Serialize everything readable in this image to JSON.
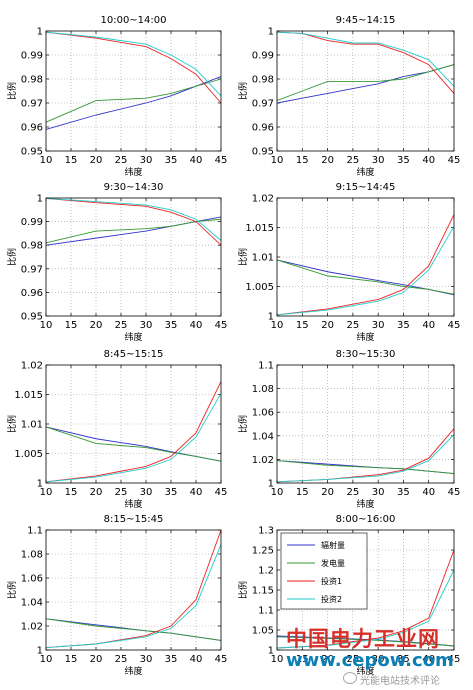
{
  "chart_data": [
    {
      "type": "line",
      "title": "10:00~14:00",
      "xlabel": "纬度",
      "ylabel": "比例",
      "x": [
        10,
        20,
        30,
        35,
        40,
        45
      ],
      "xlim": [
        10,
        45
      ],
      "ylim": [
        0.95,
        1.0
      ],
      "yticks": [
        "0.95",
        "0.96",
        "0.97",
        "0.98",
        "0.99",
        "1"
      ],
      "xticks": [
        "10",
        "15",
        "20",
        "25",
        "30",
        "35",
        "40",
        "45"
      ],
      "grid": true,
      "series": [
        {
          "name": "辐射量",
          "values": [
            0.959,
            0.965,
            0.97,
            0.973,
            0.977,
            0.981
          ]
        },
        {
          "name": "发电量",
          "values": [
            0.962,
            0.971,
            0.972,
            0.974,
            0.977,
            0.98
          ]
        },
        {
          "name": "投资1",
          "values": [
            0.9995,
            0.997,
            0.9935,
            0.9885,
            0.982,
            0.97
          ]
        },
        {
          "name": "投资2",
          "values": [
            0.9995,
            0.9975,
            0.9945,
            0.99,
            0.984,
            0.973
          ]
        }
      ]
    },
    {
      "type": "line",
      "title": "9:45~14:15",
      "xlabel": "纬度",
      "ylabel": "比例",
      "x": [
        10,
        15,
        20,
        25,
        30,
        35,
        40,
        45
      ],
      "xlim": [
        10,
        45
      ],
      "ylim": [
        0.95,
        1.0
      ],
      "yticks": [
        "0.95",
        "0.96",
        "0.97",
        "0.98",
        "0.99",
        "1"
      ],
      "xticks": [
        "10",
        "15",
        "20",
        "25",
        "30",
        "35",
        "40",
        "45"
      ],
      "grid": true,
      "series": [
        {
          "name": "辐射量",
          "values": [
            0.97,
            0.972,
            0.974,
            0.976,
            0.978,
            0.981,
            0.983,
            0.986
          ]
        },
        {
          "name": "发电量",
          "values": [
            0.971,
            0.975,
            0.979,
            0.979,
            0.979,
            0.98,
            0.983,
            0.986
          ]
        },
        {
          "name": "投资1",
          "values": [
            0.9995,
            0.999,
            0.996,
            0.9945,
            0.9945,
            0.991,
            0.986,
            0.974
          ]
        },
        {
          "name": "投资2",
          "values": [
            0.9995,
            0.999,
            0.997,
            0.995,
            0.995,
            0.992,
            0.988,
            0.977
          ]
        }
      ]
    },
    {
      "type": "line",
      "title": "9:30~14:30",
      "xlabel": "纬度",
      "ylabel": "比例",
      "x": [
        10,
        20,
        30,
        35,
        40,
        45
      ],
      "xlim": [
        10,
        45
      ],
      "ylim": [
        0.95,
        1.0
      ],
      "yticks": [
        "0.95",
        "0.96",
        "0.97",
        "0.98",
        "0.99",
        "1"
      ],
      "xticks": [
        "10",
        "15",
        "20",
        "25",
        "30",
        "35",
        "40",
        "45"
      ],
      "grid": true,
      "series": [
        {
          "name": "辐射量",
          "values": [
            0.98,
            0.983,
            0.986,
            0.988,
            0.99,
            0.992
          ]
        },
        {
          "name": "发电量",
          "values": [
            0.981,
            0.986,
            0.987,
            0.988,
            0.99,
            0.991
          ]
        },
        {
          "name": "投资1",
          "values": [
            0.9998,
            0.998,
            0.9965,
            0.994,
            0.99,
            0.98
          ]
        },
        {
          "name": "投资2",
          "values": [
            0.9998,
            0.9985,
            0.997,
            0.995,
            0.991,
            0.982
          ]
        }
      ]
    },
    {
      "type": "line",
      "title": "9:15~14:45",
      "xlabel": "纬度",
      "ylabel": "比例",
      "x": [
        10,
        20,
        30,
        35,
        40,
        45
      ],
      "xlim": [
        10,
        45
      ],
      "ylim": [
        1.0,
        1.02
      ],
      "yticks": [
        "1",
        "1.005",
        "1.01",
        "1.015",
        "1.02"
      ],
      "xticks": [
        "10",
        "15",
        "20",
        "25",
        "30",
        "35",
        "40",
        "45"
      ],
      "grid": true,
      "series": [
        {
          "name": "辐射量",
          "values": [
            1.0095,
            1.0075,
            1.006,
            1.0053,
            1.0045,
            1.0036
          ]
        },
        {
          "name": "发电量",
          "values": [
            1.0095,
            1.0068,
            1.0058,
            1.005,
            1.0045,
            1.0037
          ]
        },
        {
          "name": "投资1",
          "values": [
            1.0002,
            1.0012,
            1.0028,
            1.0045,
            1.0085,
            1.0172
          ]
        },
        {
          "name": "投资2",
          "values": [
            1.0002,
            1.001,
            1.0025,
            1.004,
            1.0078,
            1.0152
          ]
        }
      ]
    },
    {
      "type": "line",
      "title": "8:45~15:15",
      "xlabel": "纬度",
      "ylabel": "比例",
      "x": [
        10,
        20,
        30,
        35,
        40,
        45
      ],
      "xlim": [
        10,
        45
      ],
      "ylim": [
        1.0,
        1.02
      ],
      "yticks": [
        "1",
        "1.005",
        "1.01",
        "1.015",
        "1.02"
      ],
      "xticks": [
        "10",
        "15",
        "20",
        "25",
        "30",
        "35",
        "40",
        "45"
      ],
      "grid": true,
      "series": [
        {
          "name": "辐射量",
          "values": [
            1.0095,
            1.0075,
            1.0062,
            1.0053,
            1.0045,
            1.0037
          ]
        },
        {
          "name": "发电量",
          "values": [
            1.0095,
            1.0067,
            1.006,
            1.0052,
            1.0045,
            1.0037
          ]
        },
        {
          "name": "投资1",
          "values": [
            1.0002,
            1.0012,
            1.0028,
            1.0045,
            1.0085,
            1.0172
          ]
        },
        {
          "name": "投资2",
          "values": [
            1.0002,
            1.001,
            1.0025,
            1.004,
            1.0078,
            1.0152
          ]
        }
      ]
    },
    {
      "type": "line",
      "title": "8:30~15:30",
      "xlabel": "纬度",
      "ylabel": "比例",
      "x": [
        10,
        20,
        30,
        35,
        40,
        45
      ],
      "xlim": [
        10,
        45
      ],
      "ylim": [
        1.0,
        1.1
      ],
      "yticks": [
        "1",
        "1.02",
        "1.04",
        "1.06",
        "1.08",
        "1.1"
      ],
      "xticks": [
        "10",
        "15",
        "20",
        "25",
        "30",
        "35",
        "40",
        "45"
      ],
      "grid": true,
      "series": [
        {
          "name": "辐射量",
          "values": [
            1.019,
            1.016,
            1.013,
            1.012,
            1.01,
            1.008
          ]
        },
        {
          "name": "发电量",
          "values": [
            1.019,
            1.015,
            1.013,
            1.012,
            1.01,
            1.008
          ]
        },
        {
          "name": "投资1",
          "values": [
            1.001,
            1.003,
            1.007,
            1.011,
            1.021,
            1.046
          ]
        },
        {
          "name": "投资2",
          "values": [
            1.001,
            1.003,
            1.006,
            1.01,
            1.019,
            1.041
          ]
        }
      ]
    },
    {
      "type": "line",
      "title": "8:15~15:45",
      "xlabel": "纬度",
      "ylabel": "比例",
      "x": [
        10,
        20,
        30,
        35,
        40,
        45
      ],
      "xlim": [
        10,
        45
      ],
      "ylim": [
        1.0,
        1.1
      ],
      "yticks": [
        "1",
        "1.02",
        "1.04",
        "1.06",
        "1.08",
        "1.1"
      ],
      "xticks": [
        "10",
        "15",
        "20",
        "25",
        "30",
        "35",
        "40",
        "45"
      ],
      "grid": true,
      "series": [
        {
          "name": "辐射量",
          "values": [
            1.026,
            1.021,
            1.016,
            1.014,
            1.011,
            1.008
          ]
        },
        {
          "name": "发电量",
          "values": [
            1.026,
            1.02,
            1.016,
            1.014,
            1.011,
            1.008
          ]
        },
        {
          "name": "投资1",
          "values": [
            1.002,
            1.005,
            1.012,
            1.02,
            1.042,
            1.1
          ]
        },
        {
          "name": "投资2",
          "values": [
            1.002,
            1.005,
            1.011,
            1.018,
            1.037,
            1.088
          ]
        }
      ]
    },
    {
      "type": "line",
      "title": "8:00~16:00",
      "xlabel": "纬度",
      "ylabel": "比例",
      "x": [
        10,
        20,
        30,
        35,
        40,
        45
      ],
      "xlim": [
        10,
        45
      ],
      "ylim": [
        1.0,
        1.3
      ],
      "yticks": [
        "1",
        "1.05",
        "1.1",
        "1.15",
        "1.2",
        "1.25",
        "1.3"
      ],
      "xticks": [
        "10",
        "15",
        "20",
        "25",
        "30",
        "35",
        "40",
        "45"
      ],
      "grid": true,
      "legend": "top-left",
      "series": [
        {
          "name": "辐射量",
          "values": [
            1.035,
            1.03,
            1.025,
            1.021,
            1.016,
            1.01
          ]
        },
        {
          "name": "发电量",
          "values": [
            1.033,
            1.029,
            1.024,
            1.02,
            1.015,
            1.01
          ]
        },
        {
          "name": "投资1",
          "values": [
            1.005,
            1.012,
            1.03,
            1.048,
            1.08,
            1.25
          ]
        },
        {
          "name": "投资2",
          "values": [
            1.005,
            1.011,
            1.027,
            1.044,
            1.072,
            1.2
          ]
        }
      ]
    }
  ],
  "colors": {
    "辐射量": "#3333cc",
    "发电量": "#339933",
    "投资1": "#ee2222",
    "投资2": "#22cccc"
  },
  "watermark": {
    "name": "中国电力工业网",
    "url": "www.cepow.com",
    "wechat": "光能电站技术评论"
  }
}
